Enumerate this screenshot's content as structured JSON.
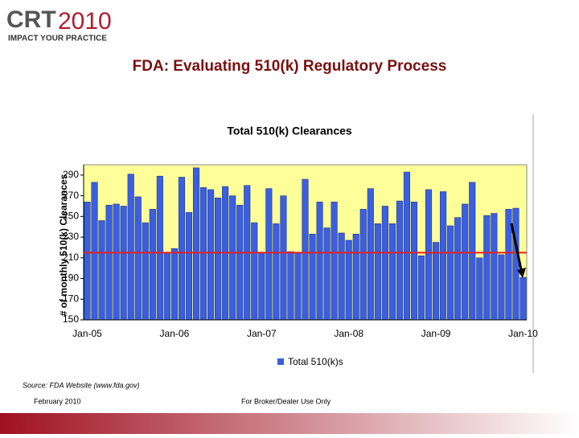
{
  "logo": {
    "brand": "CRT",
    "year": "2010",
    "tagline": "IMPACT YOUR PRACTICE"
  },
  "slide_title": "FDA: Evaluating 510(k) Regulatory Process",
  "chart_data": {
    "type": "bar",
    "title": "Total 510(k) Clearances",
    "y_label": "# of monthly 510(k) Clearances",
    "categories": [
      "Jan-05",
      null,
      null,
      null,
      null,
      null,
      null,
      null,
      null,
      null,
      null,
      null,
      "Jan-06",
      null,
      null,
      null,
      null,
      null,
      null,
      null,
      null,
      null,
      null,
      null,
      "Jan-07",
      null,
      null,
      null,
      null,
      null,
      null,
      null,
      null,
      null,
      null,
      null,
      "Jan-08",
      null,
      null,
      null,
      null,
      null,
      null,
      null,
      null,
      null,
      null,
      null,
      "Jan-09",
      null,
      null,
      null,
      null,
      null,
      null,
      null,
      null,
      null,
      null,
      null,
      "Jan-10"
    ],
    "series": [
      {
        "name": "Total 510(k)s",
        "color": "#3a5fe0",
        "values": [
          264,
          283,
          246,
          261,
          262,
          260,
          291,
          269,
          244,
          257,
          289,
          215,
          219,
          288,
          254,
          297,
          278,
          276,
          268,
          279,
          270,
          261,
          280,
          244,
          215,
          277,
          243,
          270,
          216,
          215,
          286,
          233,
          264,
          239,
          264,
          234,
          227,
          233,
          257,
          277,
          243,
          260,
          243,
          265,
          293,
          264,
          212,
          276,
          225,
          274,
          241,
          249,
          262,
          283,
          210,
          251,
          253,
          213,
          257,
          258,
          191
        ]
      }
    ],
    "ylim": [
      150,
      300
    ],
    "yticks": [
      150,
      170,
      190,
      210,
      230,
      250,
      270,
      290
    ],
    "reference_line": {
      "value": 215,
      "color": "#e02020"
    },
    "plot_background": "#ffff99",
    "legend": "bottom"
  },
  "source": "Source: FDA Website (www.fda.gov)",
  "footer": {
    "date": "February 2010",
    "disclaimer": "For Broker/Dealer Use Only"
  }
}
